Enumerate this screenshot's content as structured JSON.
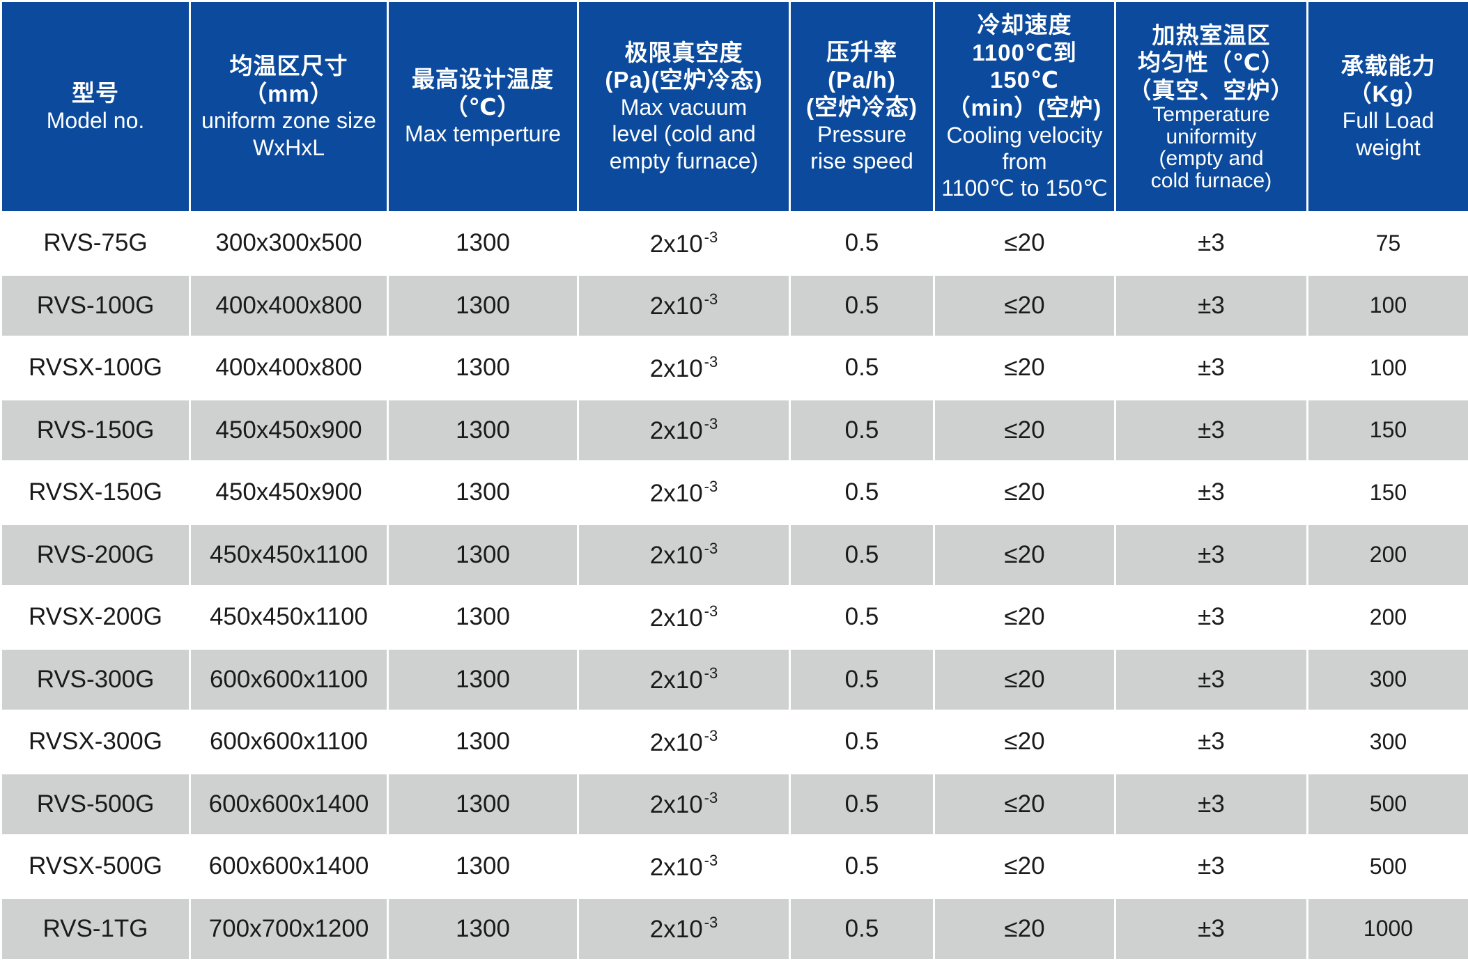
{
  "columns": [
    {
      "cn": [
        "型号"
      ],
      "en": [
        "Model no."
      ]
    },
    {
      "cn": [
        "均温区尺寸",
        "（mm）"
      ],
      "en": [
        "uniform zone size",
        "WxHxL"
      ]
    },
    {
      "cn": [
        "最高设计温度",
        "（℃）"
      ],
      "en": [
        "Max temperture"
      ]
    },
    {
      "cn": [
        "极限真空度",
        "(Pa)(空炉冷态)"
      ],
      "en": [
        "Max vacuum",
        "level (cold and",
        "empty furnace)"
      ]
    },
    {
      "cn": [
        "压升率",
        "(Pa/h)",
        "(空炉冷态)"
      ],
      "en": [
        "Pressure",
        "rise speed"
      ]
    },
    {
      "cn": [
        "冷却速度",
        "1100℃到150℃",
        "（min）(空炉)"
      ],
      "en": [
        "Cooling velocity",
        "from",
        "1100℃ to 150℃"
      ]
    },
    {
      "cn": [
        "加热室温区",
        "均匀性（℃）",
        "（真空、空炉）"
      ],
      "en": [
        "Temperature",
        "uniformity",
        "(empty and",
        "cold furnace)"
      ]
    },
    {
      "cn": [
        "承载能力",
        "（Kg）"
      ],
      "en": [
        "Full Load",
        "weight"
      ]
    }
  ],
  "rows": [
    {
      "model": "RVS-75G",
      "size": "300x300x500",
      "max_temp": "1300",
      "vac_base": "2x10",
      "vac_exp": "-3",
      "pressure_rise": "0.5",
      "cooling": "≤20",
      "uniformity": "±3",
      "load": "75"
    },
    {
      "model": "RVS-100G",
      "size": "400x400x800",
      "max_temp": "1300",
      "vac_base": "2x10",
      "vac_exp": "-3",
      "pressure_rise": "0.5",
      "cooling": "≤20",
      "uniformity": "±3",
      "load": "100"
    },
    {
      "model": "RVSX-100G",
      "size": "400x400x800",
      "max_temp": "1300",
      "vac_base": "2x10",
      "vac_exp": "-3",
      "pressure_rise": "0.5",
      "cooling": "≤20",
      "uniformity": "±3",
      "load": "100"
    },
    {
      "model": "RVS-150G",
      "size": "450x450x900",
      "max_temp": "1300",
      "vac_base": "2x10",
      "vac_exp": "-3",
      "pressure_rise": "0.5",
      "cooling": "≤20",
      "uniformity": "±3",
      "load": "150"
    },
    {
      "model": "RVSX-150G",
      "size": "450x450x900",
      "max_temp": "1300",
      "vac_base": "2x10",
      "vac_exp": "-3",
      "pressure_rise": "0.5",
      "cooling": "≤20",
      "uniformity": "±3",
      "load": "150"
    },
    {
      "model": "RVS-200G",
      "size": "450x450x1100",
      "max_temp": "1300",
      "vac_base": "2x10",
      "vac_exp": "-3",
      "pressure_rise": "0.5",
      "cooling": "≤20",
      "uniformity": "±3",
      "load": "200"
    },
    {
      "model": "RVSX-200G",
      "size": "450x450x1100",
      "max_temp": "1300",
      "vac_base": "2x10",
      "vac_exp": "-3",
      "pressure_rise": "0.5",
      "cooling": "≤20",
      "uniformity": "±3",
      "load": "200"
    },
    {
      "model": "RVS-300G",
      "size": "600x600x1100",
      "max_temp": "1300",
      "vac_base": "2x10",
      "vac_exp": "-3",
      "pressure_rise": "0.5",
      "cooling": "≤20",
      "uniformity": "±3",
      "load": "300"
    },
    {
      "model": "RVSX-300G",
      "size": "600x600x1100",
      "max_temp": "1300",
      "vac_base": "2x10",
      "vac_exp": "-3",
      "pressure_rise": "0.5",
      "cooling": "≤20",
      "uniformity": "±3",
      "load": "300"
    },
    {
      "model": "RVS-500G",
      "size": "600x600x1400",
      "max_temp": "1300",
      "vac_base": "2x10",
      "vac_exp": "-3",
      "pressure_rise": "0.5",
      "cooling": "≤20",
      "uniformity": "±3",
      "load": "500"
    },
    {
      "model": "RVSX-500G",
      "size": "600x600x1400",
      "max_temp": "1300",
      "vac_base": "2x10",
      "vac_exp": "-3",
      "pressure_rise": "0.5",
      "cooling": "≤20",
      "uniformity": "±3",
      "load": "500"
    },
    {
      "model": "RVS-1TG",
      "size": "700x700x1200",
      "max_temp": "1300",
      "vac_base": "2x10",
      "vac_exp": "-3",
      "pressure_rise": "0.5",
      "cooling": "≤20",
      "uniformity": "±3",
      "load": "1000"
    }
  ]
}
